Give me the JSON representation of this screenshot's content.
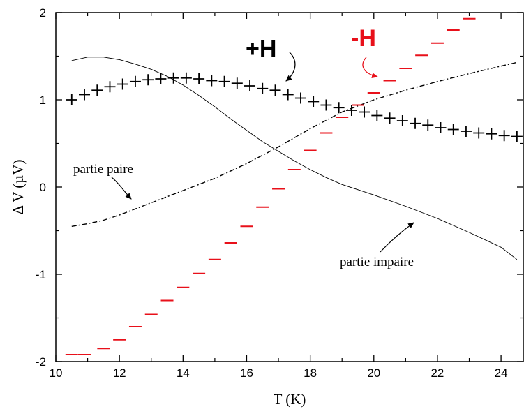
{
  "chart_data": {
    "type": "scatter",
    "title": "",
    "xlabel": "T (K)",
    "ylabel": "Δ V (µV)",
    "xlim": [
      10,
      24.7
    ],
    "ylim": [
      -2,
      2
    ],
    "xticks": [
      10,
      12,
      14,
      16,
      18,
      20,
      22,
      24
    ],
    "yticks": [
      -2,
      -1,
      0,
      1,
      2
    ],
    "grid": false,
    "series": [
      {
        "name": "+H",
        "style": "plus-markers",
        "color": "#000000",
        "x": [
          10.5,
          10.9,
          11.3,
          11.7,
          12.1,
          12.5,
          12.9,
          13.3,
          13.7,
          14.1,
          14.5,
          14.9,
          15.3,
          15.7,
          16.1,
          16.5,
          16.9,
          17.3,
          17.7,
          18.1,
          18.5,
          18.9,
          19.3,
          19.7,
          20.1,
          20.5,
          20.9,
          21.3,
          21.7,
          22.1,
          22.5,
          22.9,
          23.3,
          23.7,
          24.1,
          24.5
        ],
        "y": [
          1.0,
          1.06,
          1.11,
          1.15,
          1.18,
          1.21,
          1.23,
          1.24,
          1.25,
          1.25,
          1.24,
          1.22,
          1.21,
          1.19,
          1.16,
          1.13,
          1.11,
          1.06,
          1.02,
          0.98,
          0.94,
          0.91,
          0.88,
          0.86,
          0.82,
          0.79,
          0.76,
          0.73,
          0.71,
          0.68,
          0.66,
          0.64,
          0.62,
          0.61,
          0.59,
          0.58
        ]
      },
      {
        "name": "-H",
        "style": "dash-markers",
        "color": "#e8101a",
        "x": [
          10.5,
          10.9,
          11.5,
          12.0,
          12.5,
          13.0,
          13.5,
          14.0,
          14.5,
          15.0,
          15.5,
          16.0,
          16.5,
          17.0,
          17.5,
          18.0,
          18.5,
          19.0,
          19.5,
          20.0,
          20.5,
          21.0,
          21.5,
          22.0,
          22.5,
          23.0
        ],
        "y": [
          -1.92,
          -1.92,
          -1.85,
          -1.75,
          -1.6,
          -1.46,
          -1.3,
          -1.15,
          -0.99,
          -0.83,
          -0.64,
          -0.45,
          -0.23,
          -0.02,
          0.2,
          0.42,
          0.62,
          0.8,
          0.94,
          1.08,
          1.22,
          1.36,
          1.51,
          1.65,
          1.8,
          1.93
        ]
      },
      {
        "name": "partie paire",
        "style": "dash-dot-line",
        "color": "#000000",
        "x": [
          10.5,
          11,
          11.5,
          12,
          12.5,
          13,
          13.5,
          14,
          15,
          16,
          17,
          18,
          19,
          20,
          21,
          22,
          23,
          24.5
        ],
        "y": [
          -0.45,
          -0.42,
          -0.38,
          -0.32,
          -0.25,
          -0.18,
          -0.11,
          -0.04,
          0.1,
          0.27,
          0.46,
          0.67,
          0.86,
          1.0,
          1.11,
          1.21,
          1.3,
          1.43
        ]
      },
      {
        "name": "partie impaire",
        "style": "solid-line",
        "color": "#000000",
        "x": [
          10.5,
          11,
          11.5,
          12,
          12.5,
          13,
          13.5,
          14,
          14.5,
          15,
          15.5,
          16,
          16.5,
          17,
          17.5,
          18,
          18.5,
          19,
          20,
          21,
          22,
          23,
          24,
          24.5
        ],
        "y": [
          1.45,
          1.49,
          1.49,
          1.46,
          1.41,
          1.35,
          1.27,
          1.17,
          1.05,
          0.92,
          0.78,
          0.65,
          0.52,
          0.41,
          0.3,
          0.2,
          0.11,
          0.03,
          -0.09,
          -0.22,
          -0.36,
          -0.52,
          -0.69,
          -0.83
        ]
      }
    ],
    "annotations": {
      "plus_h": "+H",
      "minus_h": "-H",
      "partie_paire": "partie paire",
      "partie_impaire": "partie impaire"
    }
  }
}
